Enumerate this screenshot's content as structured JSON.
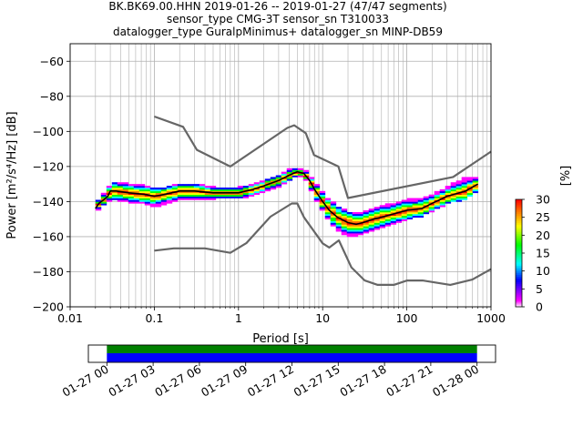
{
  "title": {
    "line1": "BK.BK69.00.HHN   2019-01-26 -- 2019-01-27  (47/47 segments)",
    "line2": "sensor_type CMG-3T sensor_sn T310033",
    "line3": "datalogger_type GuralpMinimus+ datalogger_sn MINP-DB59"
  },
  "chart_data": [
    {
      "type": "heatmap",
      "subtype": "probabilistic-power-spectral-density",
      "xlabel": "Period [s]",
      "ylabel": "Power [m²/s⁴/Hz] [dB]",
      "xscale": "log",
      "xlim": [
        0.01,
        1000
      ],
      "ylim": [
        -200,
        -50
      ],
      "xticks": [
        0.01,
        0.1,
        1,
        10,
        100,
        1000
      ],
      "xtick_labels": [
        "0.01",
        "0.1",
        "1",
        "10",
        "100",
        "1000"
      ],
      "yticks": [
        -200,
        -180,
        -160,
        -140,
        -120,
        -100,
        -80,
        -60
      ],
      "ytick_labels": [
        "−200",
        "−180",
        "−160",
        "−140",
        "−120",
        "−100",
        "−80",
        "−60"
      ],
      "grid": true,
      "colorbar": {
        "label": "[%]",
        "range": [
          0,
          30
        ],
        "ticks": [
          0,
          5,
          10,
          15,
          20,
          25,
          30
        ],
        "colors": [
          "#ffffff",
          "#ff00ff",
          "#0000ff",
          "#00ffff",
          "#00ff00",
          "#ffff00",
          "#ff7f00",
          "#ff0000"
        ]
      },
      "series": [
        {
          "name": "",
          "role": "new-high-noise-model",
          "color": "#666666",
          "x": [
            0.1,
            0.22,
            0.32,
            0.8,
            3.8,
            4.6,
            6.3,
            7.9,
            15.4,
            20,
            354.8,
            1000
          ],
          "y": [
            -91.5,
            -97.4,
            -110.5,
            -120.0,
            -98.0,
            -96.5,
            -101.0,
            -113.5,
            -120.0,
            -138.0,
            -126.0,
            -111.5
          ]
        },
        {
          "name": "",
          "role": "new-low-noise-model",
          "color": "#666666",
          "x": [
            0.1,
            0.17,
            0.4,
            0.8,
            1.24,
            2.4,
            4.3,
            5.0,
            6.0,
            10.0,
            12.0,
            15.6,
            21.9,
            31.6,
            45.0,
            70.0,
            101.0,
            154.0,
            328.0,
            600.0,
            1000.0
          ],
          "y": [
            -168.0,
            -166.7,
            -166.7,
            -169.2,
            -163.7,
            -148.6,
            -141.1,
            -141.1,
            -149.0,
            -163.8,
            -166.2,
            -162.1,
            -177.5,
            -185.0,
            -187.5,
            -187.5,
            -185.0,
            -185.0,
            -187.5,
            -184.5,
            -178.5
          ]
        },
        {
          "name": "",
          "role": "mode",
          "color": "#000000",
          "x": [
            0.02,
            0.022,
            0.025,
            0.028,
            0.03,
            0.035,
            0.05,
            0.08,
            0.1,
            0.13,
            0.2,
            0.3,
            0.5,
            0.8,
            1.0,
            1.5,
            2.0,
            3.0,
            4.0,
            5.0,
            6.0,
            7.0,
            8.0,
            10.0,
            12.0,
            15.0,
            20.0,
            25.0,
            30.0,
            40.0,
            50.0,
            70.0,
            100.0,
            150.0,
            200.0,
            300.0,
            500.0,
            700.0
          ],
          "y": [
            -144,
            -141,
            -139,
            -137,
            -134,
            -134,
            -135,
            -136,
            -137,
            -136,
            -134,
            -134,
            -135,
            -135,
            -135,
            -133,
            -131,
            -128,
            -125,
            -123,
            -124,
            -128,
            -133,
            -140,
            -145,
            -149,
            -152,
            -153,
            -152,
            -150,
            -149,
            -147,
            -145,
            -144,
            -141,
            -137,
            -134,
            -130
          ]
        }
      ],
      "bands": [
        {
          "role": "density-envelope",
          "x": [
            0.02,
            0.022,
            0.025,
            0.028,
            0.03,
            0.035,
            0.05,
            0.08,
            0.1,
            0.13,
            0.2,
            0.3,
            0.5,
            0.8,
            1.0,
            1.5,
            2.0,
            3.0,
            4.0,
            5.0,
            6.0,
            7.0,
            8.0,
            10.0,
            12.0,
            15.0,
            20.0,
            25.0,
            30.0,
            40.0,
            50.0,
            70.0,
            100.0,
            150.0,
            200.0,
            300.0,
            500.0,
            700.0
          ],
          "upper": [
            -142,
            -139,
            -136,
            -134,
            -129,
            -129,
            -130,
            -131,
            -133,
            -132,
            -130,
            -130,
            -132,
            -132,
            -132,
            -130,
            -128,
            -125,
            -122,
            -121,
            -122,
            -125,
            -129,
            -135,
            -139,
            -143,
            -146,
            -147,
            -146,
            -144,
            -143,
            -141,
            -139,
            -138,
            -136,
            -132,
            -126,
            -126
          ],
          "lower": [
            -146,
            -144,
            -142,
            -140,
            -139,
            -139,
            -140,
            -141,
            -143,
            -141,
            -139,
            -139,
            -138,
            -138,
            -138,
            -136,
            -134,
            -131,
            -128,
            -125,
            -126,
            -131,
            -137,
            -145,
            -151,
            -156,
            -160,
            -159,
            -158,
            -156,
            -155,
            -152,
            -150,
            -148,
            -145,
            -141,
            -138,
            -134
          ]
        }
      ]
    },
    {
      "type": "timeline",
      "role": "data-coverage",
      "tick_labels": [
        "01-27 00",
        "01-27 03",
        "01-27 06",
        "01-27 09",
        "01-27 12",
        "01-27 15",
        "01-27 18",
        "01-27 21",
        "01-28 00"
      ],
      "tick_hours": [
        0,
        3,
        6,
        9,
        12,
        15,
        18,
        21,
        24
      ],
      "xlim_hours": [
        -1.2,
        25.2
      ],
      "coverage": [
        {
          "start": 0,
          "end": 24,
          "color": "#0000ff"
        }
      ],
      "used": [
        {
          "start": 0,
          "end": 24,
          "color": "#008000"
        }
      ]
    }
  ]
}
